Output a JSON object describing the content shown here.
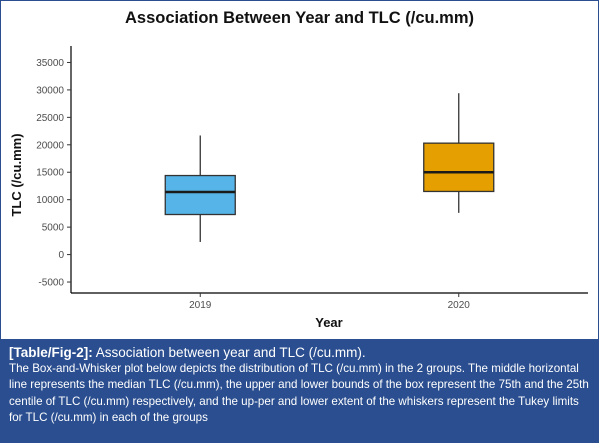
{
  "chart_data": {
    "type": "box",
    "title": "Association Between Year and TLC (/cu.mm)",
    "xlabel": "Year",
    "ylabel": "TLC (/cu.mm)",
    "ylim": [
      -7000,
      38000
    ],
    "yticks": [
      35000,
      30000,
      25000,
      20000,
      15000,
      10000,
      5000,
      0,
      -5000
    ],
    "grid": false,
    "categories": [
      "2019",
      "2020"
    ],
    "boxes": [
      {
        "category": "2019",
        "whisker_low": 2300,
        "q1": 7300,
        "median": 11400,
        "q3": 14400,
        "whisker_high": 21700,
        "color": "#56b4e9"
      },
      {
        "category": "2020",
        "whisker_low": 7600,
        "q1": 11500,
        "median": 15000,
        "q3": 20300,
        "whisker_high": 29400,
        "color": "#e69f00"
      }
    ]
  },
  "caption": {
    "label": "[Table/Fig-2]:",
    "title": "Association between year and TLC (/cu.mm).",
    "body": "The Box-and-Whisker plot below depicts the distribution of TLC (/cu.mm) in the 2 groups. The middle horizontal line represents the median TLC (/cu.mm), the upper and lower bounds of the box represent the 75th and the 25th centile of TLC (/cu.mm) respectively, and the up-per and lower extent of the whiskers represent the Tukey limits for TLC (/cu.mm) in each of the groups"
  }
}
